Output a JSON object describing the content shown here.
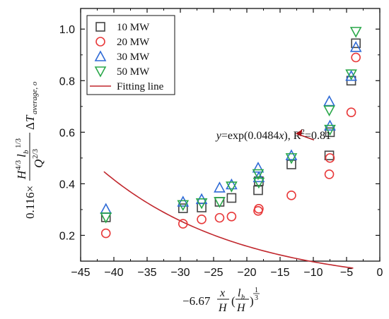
{
  "chart_data": {
    "type": "scatter",
    "xlim": [
      -45,
      0
    ],
    "ylim": [
      0.1,
      1.08
    ],
    "x_ticks": [
      -45,
      -40,
      -35,
      -30,
      -25,
      -20,
      -15,
      -10,
      -5,
      0
    ],
    "y_ticks": [
      0.2,
      0.4,
      0.6,
      0.8,
      1.0
    ],
    "x_tick_labels": [
      "−45",
      "−40",
      "−35",
      "−30",
      "−25",
      "−20",
      "−15",
      "−10",
      "−5",
      "0"
    ],
    "y_tick_labels": [
      "0.2",
      "0.4",
      "0.6",
      "0.8",
      "1.0"
    ],
    "grid": false,
    "legend_position": "top-left",
    "ylabel": {
      "coef": "0.116×",
      "num_H": "H",
      "num_H_exp": "4/3",
      "num_l": "l",
      "num_l_sub": "b",
      "num_l_exp": "1/3",
      "den_Q": "Q",
      "den_Q_exp": "2/3",
      "delta": "Δ",
      "T": "T",
      "T_sub": "average, o"
    },
    "xlabel": {
      "coef": "−6.67",
      "x": "x",
      "H": "H",
      "open": "(",
      "lb": "l",
      "lb_sub": "b",
      "close": ")",
      "exp_num": "1",
      "exp_den": "3"
    },
    "series": [
      {
        "name": "10 MW",
        "marker": "square",
        "color": "#444444",
        "points": [
          [
            -41.2,
            0.27
          ],
          [
            -29.6,
            0.305
          ],
          [
            -26.8,
            0.308
          ],
          [
            -24.1,
            0.33
          ],
          [
            -22.3,
            0.345
          ],
          [
            -18.3,
            0.375
          ],
          [
            -18.2,
            0.41
          ],
          [
            -13.3,
            0.475
          ],
          [
            -7.6,
            0.51
          ],
          [
            -7.5,
            0.6
          ],
          [
            -4.3,
            0.8
          ],
          [
            -3.6,
            0.945
          ]
        ]
      },
      {
        "name": "20 MW",
        "marker": "circle",
        "color": "#e8393a",
        "points": [
          [
            -41.2,
            0.208
          ],
          [
            -29.6,
            0.245
          ],
          [
            -26.8,
            0.262
          ],
          [
            -24.1,
            0.268
          ],
          [
            -22.3,
            0.273
          ],
          [
            -18.3,
            0.295
          ],
          [
            -18.2,
            0.303
          ],
          [
            -13.3,
            0.355
          ],
          [
            -7.6,
            0.437
          ],
          [
            -7.5,
            0.5
          ],
          [
            -4.3,
            0.677
          ],
          [
            -3.6,
            0.89
          ]
        ]
      },
      {
        "name": "30 MW",
        "marker": "triangle-up",
        "color": "#2e6ad6",
        "points": [
          [
            -41.2,
            0.302
          ],
          [
            -29.6,
            0.33
          ],
          [
            -26.8,
            0.34
          ],
          [
            -24.1,
            0.385
          ],
          [
            -22.3,
            0.397
          ],
          [
            -18.3,
            0.462
          ],
          [
            -18.2,
            0.425
          ],
          [
            -13.3,
            0.51
          ],
          [
            -7.6,
            0.72
          ],
          [
            -7.5,
            0.625
          ],
          [
            -4.3,
            0.818
          ],
          [
            -3.6,
            0.93
          ]
        ]
      },
      {
        "name": "50 MW",
        "marker": "triangle-down",
        "color": "#2aa84a",
        "points": [
          [
            -41.2,
            0.27
          ],
          [
            -29.6,
            0.318
          ],
          [
            -26.8,
            0.325
          ],
          [
            -24.1,
            0.33
          ],
          [
            -22.3,
            0.39
          ],
          [
            -18.3,
            0.438
          ],
          [
            -18.2,
            0.405
          ],
          [
            -13.3,
            0.5
          ],
          [
            -7.6,
            0.685
          ],
          [
            -7.5,
            0.61
          ],
          [
            -4.3,
            0.825
          ],
          [
            -3.6,
            0.99
          ]
        ]
      }
    ],
    "fitting_line": {
      "name": "Fitting line",
      "color": "#c1272d",
      "x_range": [
        -41.5,
        -4.0
      ],
      "a": 0.06,
      "b": 0.0484
    },
    "annotation": {
      "text_y": "y",
      "text_mid": "=exp(0.0484",
      "text_x": "x",
      "text_rest": "), R",
      "text_sup": "2",
      "text_end": "=0.81",
      "arrow_from": [
        -12.6,
        0.595
      ],
      "arrow_to": [
        -9.9,
        0.57
      ],
      "anchor": [
        -24.6,
        0.59
      ]
    }
  }
}
